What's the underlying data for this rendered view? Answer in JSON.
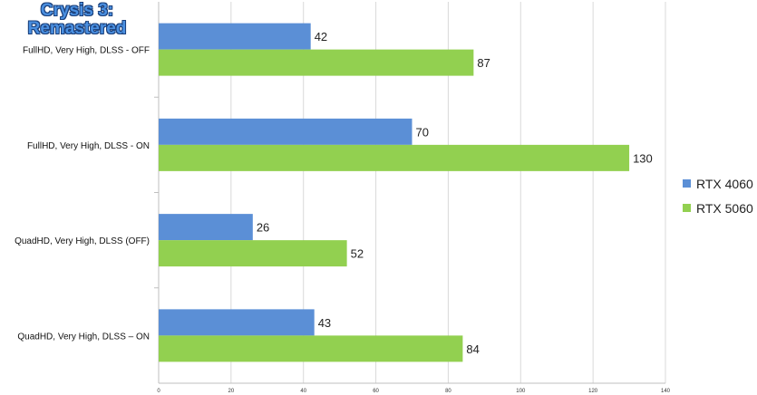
{
  "chart_data": {
    "type": "bar",
    "orientation": "horizontal",
    "title_lines": [
      "Crysis 3:",
      "Remastered"
    ],
    "categories": [
      "FullHD, Very High, DLSS - OFF",
      "FullHD, Very High, DLSS - ON",
      "QuadHD, Very High, DLSS (OFF)",
      "QuadHD, Very High, DLSS – ON"
    ],
    "series": [
      {
        "name": "RTX 4060",
        "color": "#5b8fd6",
        "values": [
          42,
          70,
          26,
          43
        ]
      },
      {
        "name": "RTX 5060",
        "color": "#92d050",
        "values": [
          87,
          130,
          52,
          84
        ]
      }
    ],
    "xlim": [
      0,
      140
    ],
    "xticks": [
      "0",
      "20",
      "40",
      "60",
      "80",
      "100",
      "120",
      "140"
    ],
    "grid": true,
    "legend_position": "right"
  }
}
